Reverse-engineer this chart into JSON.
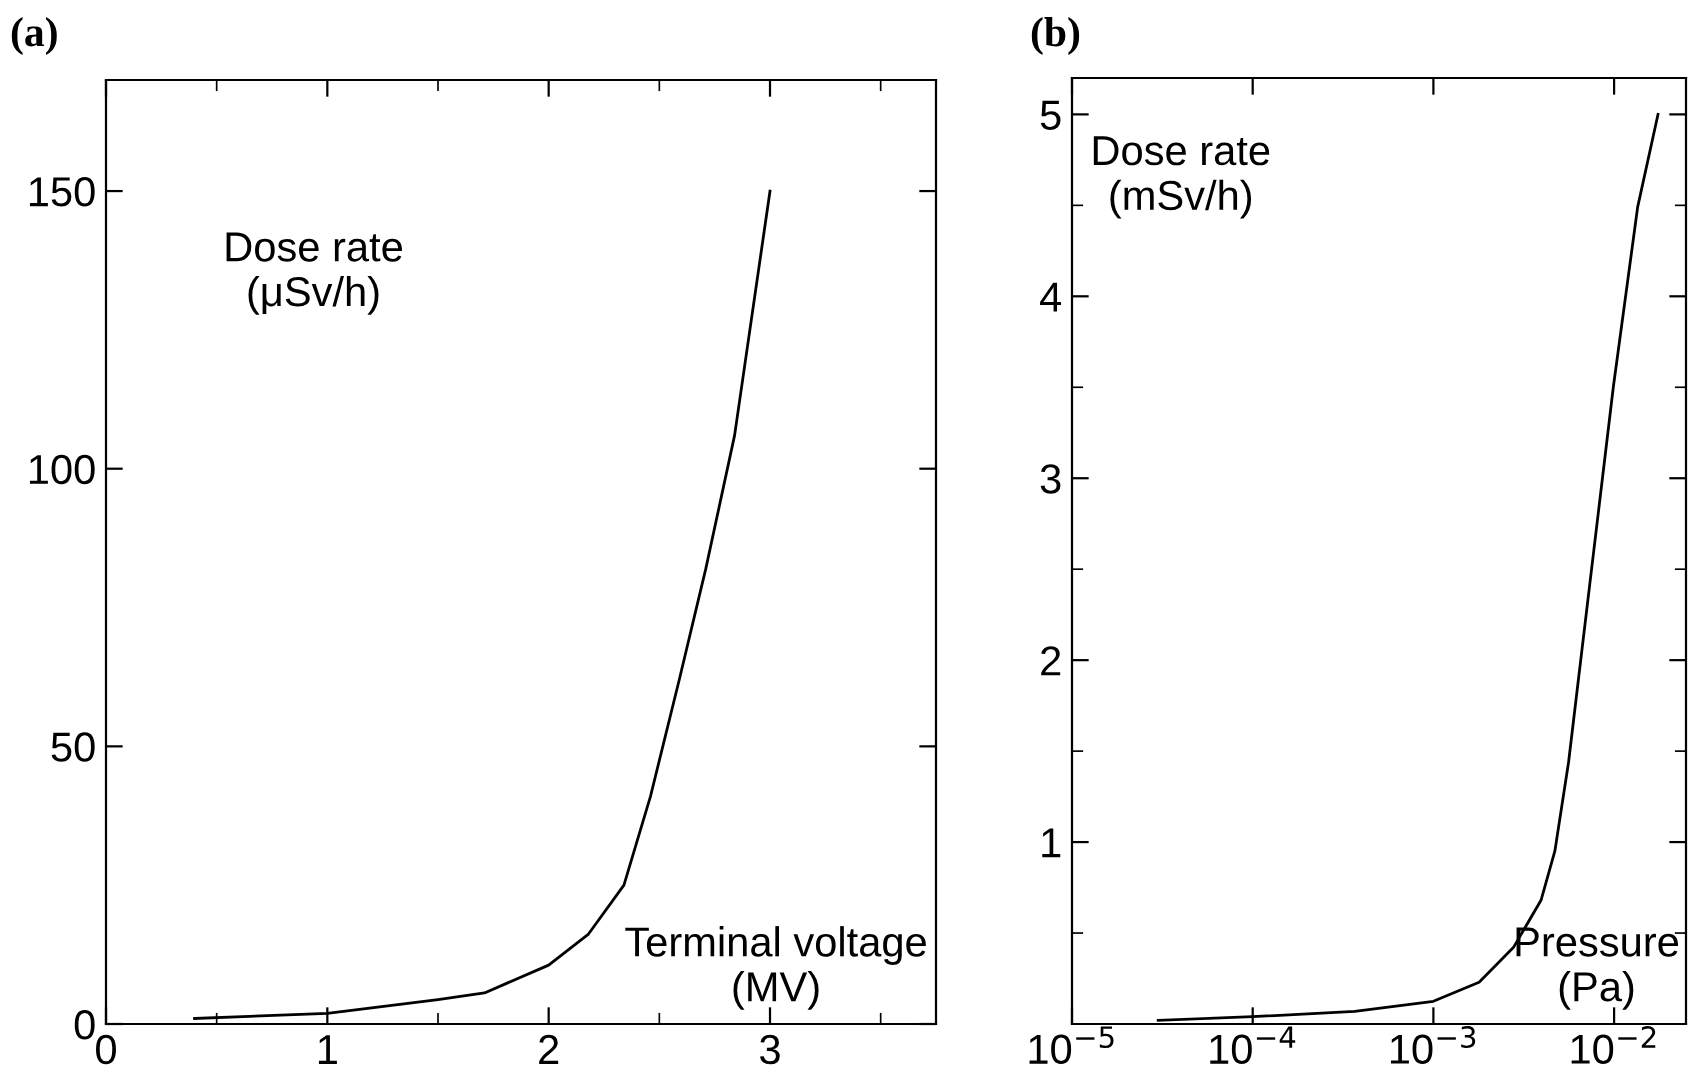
{
  "chart_data": [
    {
      "type": "line",
      "title": "(a)",
      "xlabel": "Terminal voltage\n(MV)",
      "ylabel": "Dose rate\n(μSv/h)",
      "x": [
        0.4,
        1.0,
        1.5,
        1.71,
        2.0,
        2.18,
        2.34,
        2.46,
        2.59,
        2.71,
        2.84,
        3.0
      ],
      "series": [
        {
          "color": "#000000",
          "values": [
            1,
            1.9,
            4.4,
            5.6,
            10.6,
            16.2,
            25,
            41,
            62,
            82,
            106,
            150
          ]
        }
      ],
      "xlim": [
        0,
        3.75
      ],
      "xticks": [
        0,
        1,
        2,
        3
      ],
      "ylim": [
        0,
        170
      ],
      "yticks": [
        0,
        50,
        100,
        150
      ],
      "grid": false,
      "legend": false
    },
    {
      "type": "line",
      "title": "(b)",
      "xlabel": "Pressure\n(Pa)",
      "ylabel": "Dose rate\n(mSv/h)",
      "log": "x",
      "x": [
        3e-05,
        0.0001,
        0.000367,
        0.001,
        0.00179,
        0.00277,
        0.00394,
        0.0047,
        0.0056,
        0.0073,
        0.0099,
        0.0135,
        0.0175
      ],
      "series": [
        {
          "color": "#000000",
          "values": [
            0.02,
            0.04,
            0.07,
            0.125,
            0.23,
            0.42,
            0.68,
            0.95,
            1.44,
            2.4,
            3.5,
            4.49,
            5.0
          ]
        }
      ],
      "xlim": [
        1e-05,
        0.025
      ],
      "xticks": [
        {
          "value": 1e-05,
          "label": "10$^{−5}$"
        },
        {
          "value": 0.0001,
          "label": "10$^{−4}$"
        },
        {
          "value": 0.001,
          "label": "10$^{−3}$"
        },
        {
          "value": 0.01,
          "label": "10$^{−2}$"
        }
      ],
      "ylim": [
        0,
        5.2
      ],
      "yticks": [
        1,
        2,
        3,
        4,
        5
      ],
      "grid": false,
      "legend": false
    }
  ]
}
